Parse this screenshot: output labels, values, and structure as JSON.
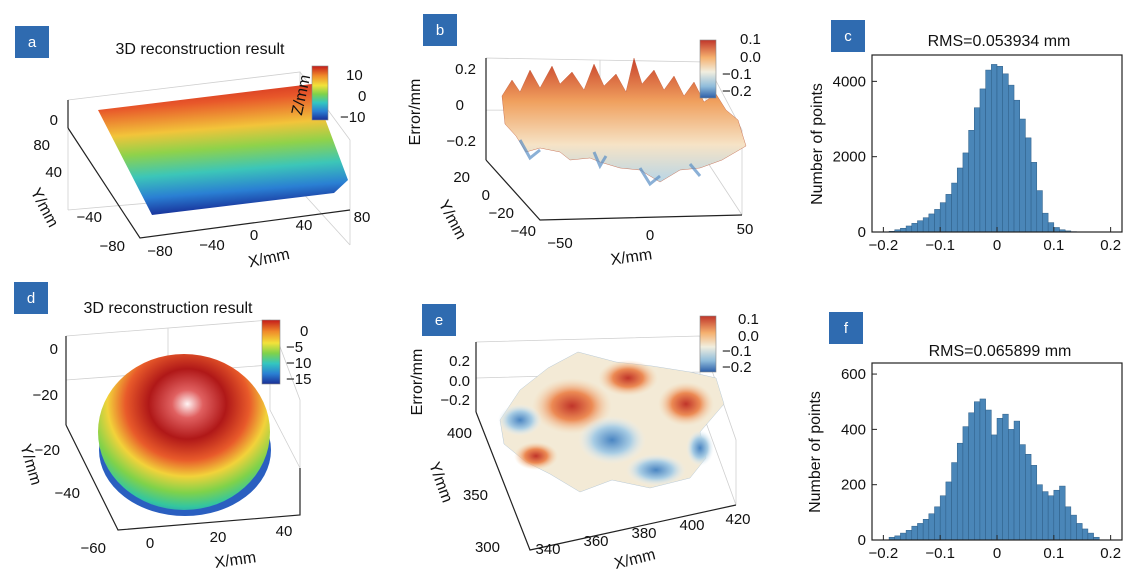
{
  "colors": {
    "panel_letter_bg": "#2f6bb0",
    "histogram_bar": "#4a86b8",
    "histogram_edge": "#2d5d86",
    "jet_colormap": [
      "#1a2f96",
      "#2a7fd3",
      "#33c6c0",
      "#7fd24a",
      "#f2e23a",
      "#f08a2a",
      "#c41a1a"
    ],
    "diverging_colormap": [
      "#2c5ea8",
      "#8fbcdb",
      "#f1eedf",
      "#f5b06e",
      "#c0352a"
    ]
  },
  "chart_data": [
    {
      "panel": "a",
      "type": "surface",
      "title": "3D reconstruction result",
      "xlabel": "X/mm",
      "ylabel": "Y/mm",
      "zlabel": "Z/mm",
      "x_ticks": [
        "−80",
        "−40",
        "0",
        "40",
        "80"
      ],
      "y_ticks": [
        "80",
        "40",
        "0",
        "−40",
        "−80"
      ],
      "z_ticks": [
        "0"
      ],
      "colorbar_ticks": [
        "10",
        "0",
        "−10"
      ],
      "colormap": "jet",
      "description_values": {
        "z_range": [
          -12,
          12
        ]
      }
    },
    {
      "panel": "b",
      "type": "surface",
      "title": "",
      "xlabel": "X/mm",
      "ylabel": "Y/mm",
      "zlabel": "Error/mm",
      "x_ticks": [
        "−50",
        "0",
        "50"
      ],
      "y_ticks": [
        "20",
        "0",
        "−20",
        "−40"
      ],
      "z_ticks": [
        "0.2",
        "0",
        "−0.2"
      ],
      "colorbar_ticks": [
        "0.1",
        "0.0",
        "−0.1",
        "−0.2"
      ],
      "colormap": "diverging"
    },
    {
      "panel": "c",
      "type": "bar",
      "title": "RMS=0.053934 mm",
      "xlabel": "",
      "ylabel": "Number of points",
      "x_ticks": [
        "−0.2",
        "−0.1",
        "0",
        "0.1",
        "0.2"
      ],
      "y_ticks": [
        "0",
        "2000",
        "4000"
      ],
      "xlim": [
        -0.22,
        0.22
      ],
      "ylim": [
        0,
        4700
      ],
      "bin_width": 0.01,
      "bin_starts": [
        -0.19,
        -0.18,
        -0.17,
        -0.16,
        -0.15,
        -0.14,
        -0.13,
        -0.12,
        -0.11,
        -0.1,
        -0.09,
        -0.08,
        -0.07,
        -0.06,
        -0.05,
        -0.04,
        -0.03,
        -0.02,
        -0.01,
        0.0,
        0.01,
        0.02,
        0.03,
        0.04,
        0.05,
        0.06,
        0.07,
        0.08,
        0.09,
        0.1,
        0.11,
        0.12,
        0.13
      ],
      "values": [
        20,
        60,
        100,
        160,
        230,
        300,
        380,
        480,
        600,
        780,
        1000,
        1300,
        1700,
        2100,
        2700,
        3300,
        3800,
        4300,
        4450,
        4400,
        4200,
        3900,
        3500,
        3000,
        2500,
        1850,
        1100,
        500,
        250,
        120,
        60,
        30,
        10
      ]
    },
    {
      "panel": "d",
      "type": "surface",
      "title": "3D reconstruction result",
      "xlabel": "X/mm",
      "ylabel": "Y/mm",
      "zlabel": "",
      "x_ticks": [
        "0",
        "20",
        "40"
      ],
      "y_ticks": [
        "−20",
        "−40",
        "−60"
      ],
      "z_ticks": [
        "0",
        "−20"
      ],
      "colorbar_ticks": [
        "0",
        "−5",
        "−10",
        "−15"
      ],
      "colormap": "jet"
    },
    {
      "panel": "e",
      "type": "surface",
      "title": "",
      "xlabel": "X/mm",
      "ylabel": "Y/mm",
      "zlabel": "Error/mm",
      "x_ticks": [
        "340",
        "360",
        "380",
        "400",
        "420"
      ],
      "y_ticks": [
        "400",
        "350",
        "300"
      ],
      "z_ticks": [
        "0.2",
        "0.0",
        "−0.2"
      ],
      "colorbar_ticks": [
        "0.1",
        "0.0",
        "−0.1",
        "−0.2"
      ],
      "colormap": "diverging"
    },
    {
      "panel": "f",
      "type": "bar",
      "title": "RMS=0.065899 mm",
      "xlabel": "",
      "ylabel": "Number of points",
      "x_ticks": [
        "−0.2",
        "−0.1",
        "0",
        "0.1",
        "0.2"
      ],
      "y_ticks": [
        "0",
        "200",
        "400",
        "600"
      ],
      "xlim": [
        -0.22,
        0.22
      ],
      "ylim": [
        0,
        640
      ],
      "bin_width": 0.01,
      "bin_starts": [
        -0.19,
        -0.18,
        -0.17,
        -0.16,
        -0.15,
        -0.14,
        -0.13,
        -0.12,
        -0.11,
        -0.1,
        -0.09,
        -0.08,
        -0.07,
        -0.06,
        -0.05,
        -0.04,
        -0.03,
        -0.02,
        -0.01,
        0.0,
        0.01,
        0.02,
        0.03,
        0.04,
        0.05,
        0.06,
        0.07,
        0.08,
        0.09,
        0.1,
        0.11,
        0.12,
        0.13,
        0.14,
        0.15,
        0.16,
        0.17
      ],
      "values": [
        10,
        15,
        25,
        35,
        50,
        60,
        75,
        95,
        120,
        160,
        210,
        280,
        350,
        410,
        460,
        500,
        510,
        470,
        380,
        440,
        455,
        400,
        430,
        345,
        310,
        270,
        200,
        175,
        160,
        180,
        195,
        120,
        90,
        60,
        40,
        25,
        10
      ]
    }
  ]
}
